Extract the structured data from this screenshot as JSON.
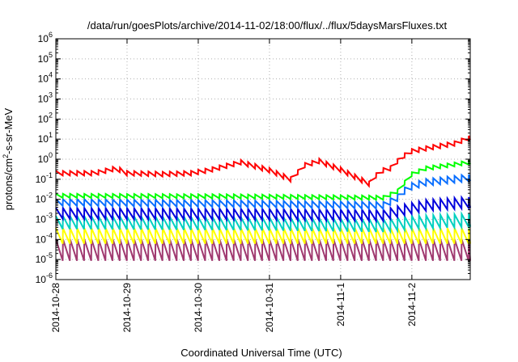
{
  "chart_data": {
    "type": "line",
    "title": "/data/run/goesPlots/archive/2014-11-02/18:00/flux/../flux/5daysMarsFluxes.txt",
    "xlabel": "Coordinated Universal Time (UTC)",
    "ylabel": "protons/cm²-s-sr-MeV",
    "ylabel_parts": {
      "base": "protons/cm",
      "sup": "2",
      "rest": "-s-sr-MeV"
    },
    "x_ticks": [
      "2014-10-28",
      "2014-10-29",
      "2014-10-30",
      "2014-10-31",
      "2014-11-1",
      "2014-11-2"
    ],
    "x_range_days": [
      0,
      5.82
    ],
    "y_scale": "log",
    "y_range_exp": [
      -6,
      6
    ],
    "y_ticks_exp": [
      -6,
      -5,
      -4,
      -3,
      -2,
      -1,
      0,
      1,
      2,
      3,
      4,
      5,
      6
    ],
    "y_tick_base": "10",
    "grid": true,
    "legend": "none",
    "series": [
      {
        "color": "#ff0000",
        "pattern": "sawtooth",
        "period_days": 0.1,
        "rise_ratio": 1.7,
        "base_knots": [
          [
            0,
            0.2
          ],
          [
            0.3,
            0.2
          ],
          [
            0.55,
            0.2
          ],
          [
            0.85,
            0.35
          ],
          [
            1.0,
            0.2
          ],
          [
            1.5,
            0.18
          ],
          [
            1.9,
            0.2
          ],
          [
            2.15,
            0.28
          ],
          [
            2.6,
            0.7
          ],
          [
            3.0,
            0.28
          ],
          [
            3.3,
            0.1
          ],
          [
            3.5,
            0.5
          ],
          [
            3.7,
            0.8
          ],
          [
            4.0,
            0.3
          ],
          [
            4.4,
            0.06
          ],
          [
            4.55,
            0.25
          ],
          [
            4.7,
            0.35
          ],
          [
            4.85,
            1.2
          ],
          [
            5.0,
            2.5
          ],
          [
            5.3,
            4.0
          ],
          [
            5.6,
            6.0
          ],
          [
            5.82,
            12.0
          ]
        ]
      },
      {
        "color": "#00ff00",
        "pattern": "sawtooth",
        "period_days": 0.1,
        "rise_ratio": 1.6,
        "base_knots": [
          [
            0,
            0.015
          ],
          [
            2.5,
            0.014
          ],
          [
            3.5,
            0.013
          ],
          [
            4.6,
            0.012
          ],
          [
            4.85,
            0.03
          ],
          [
            4.95,
            0.15
          ],
          [
            5.2,
            0.35
          ],
          [
            5.82,
            0.7
          ]
        ]
      },
      {
        "color": "#0a6fff",
        "pattern": "sawtooth",
        "period_days": 0.1,
        "rise_ratio": 2.2,
        "base_knots": [
          [
            0,
            0.007
          ],
          [
            2.5,
            0.006
          ],
          [
            4.6,
            0.005
          ],
          [
            4.8,
            0.012
          ],
          [
            4.95,
            0.04
          ],
          [
            5.2,
            0.07
          ],
          [
            5.82,
            0.12
          ]
        ]
      },
      {
        "color": "#0000dd",
        "pattern": "sawtooth",
        "period_days": 0.1,
        "rise_ratio": 3.5,
        "base_knots": [
          [
            0,
            0.002
          ],
          [
            3.0,
            0.0018
          ],
          [
            4.6,
            0.0016
          ],
          [
            4.9,
            0.003
          ],
          [
            5.2,
            0.005
          ],
          [
            5.82,
            0.007
          ]
        ]
      },
      {
        "color": "#00d0c0",
        "pattern": "sawtooth",
        "period_days": 0.1,
        "rise_ratio": 4.5,
        "base_knots": [
          [
            0,
            0.0007
          ],
          [
            3.0,
            0.0006
          ],
          [
            4.6,
            0.0005
          ],
          [
            5.0,
            0.0007
          ],
          [
            5.82,
            0.0009
          ]
        ]
      },
      {
        "color": "#ffff00",
        "pattern": "sawtooth",
        "period_days": 0.1,
        "rise_ratio": 6.0,
        "base_knots": [
          [
            0,
            0.00015
          ],
          [
            5.82,
            0.00015
          ]
        ]
      },
      {
        "color": "#a03a70",
        "pattern": "sawtooth",
        "period_days": 0.1,
        "rise_ratio": 12.0,
        "base_knots": [
          [
            0,
            3e-05
          ],
          [
            5.82,
            3e-05
          ]
        ]
      }
    ]
  }
}
